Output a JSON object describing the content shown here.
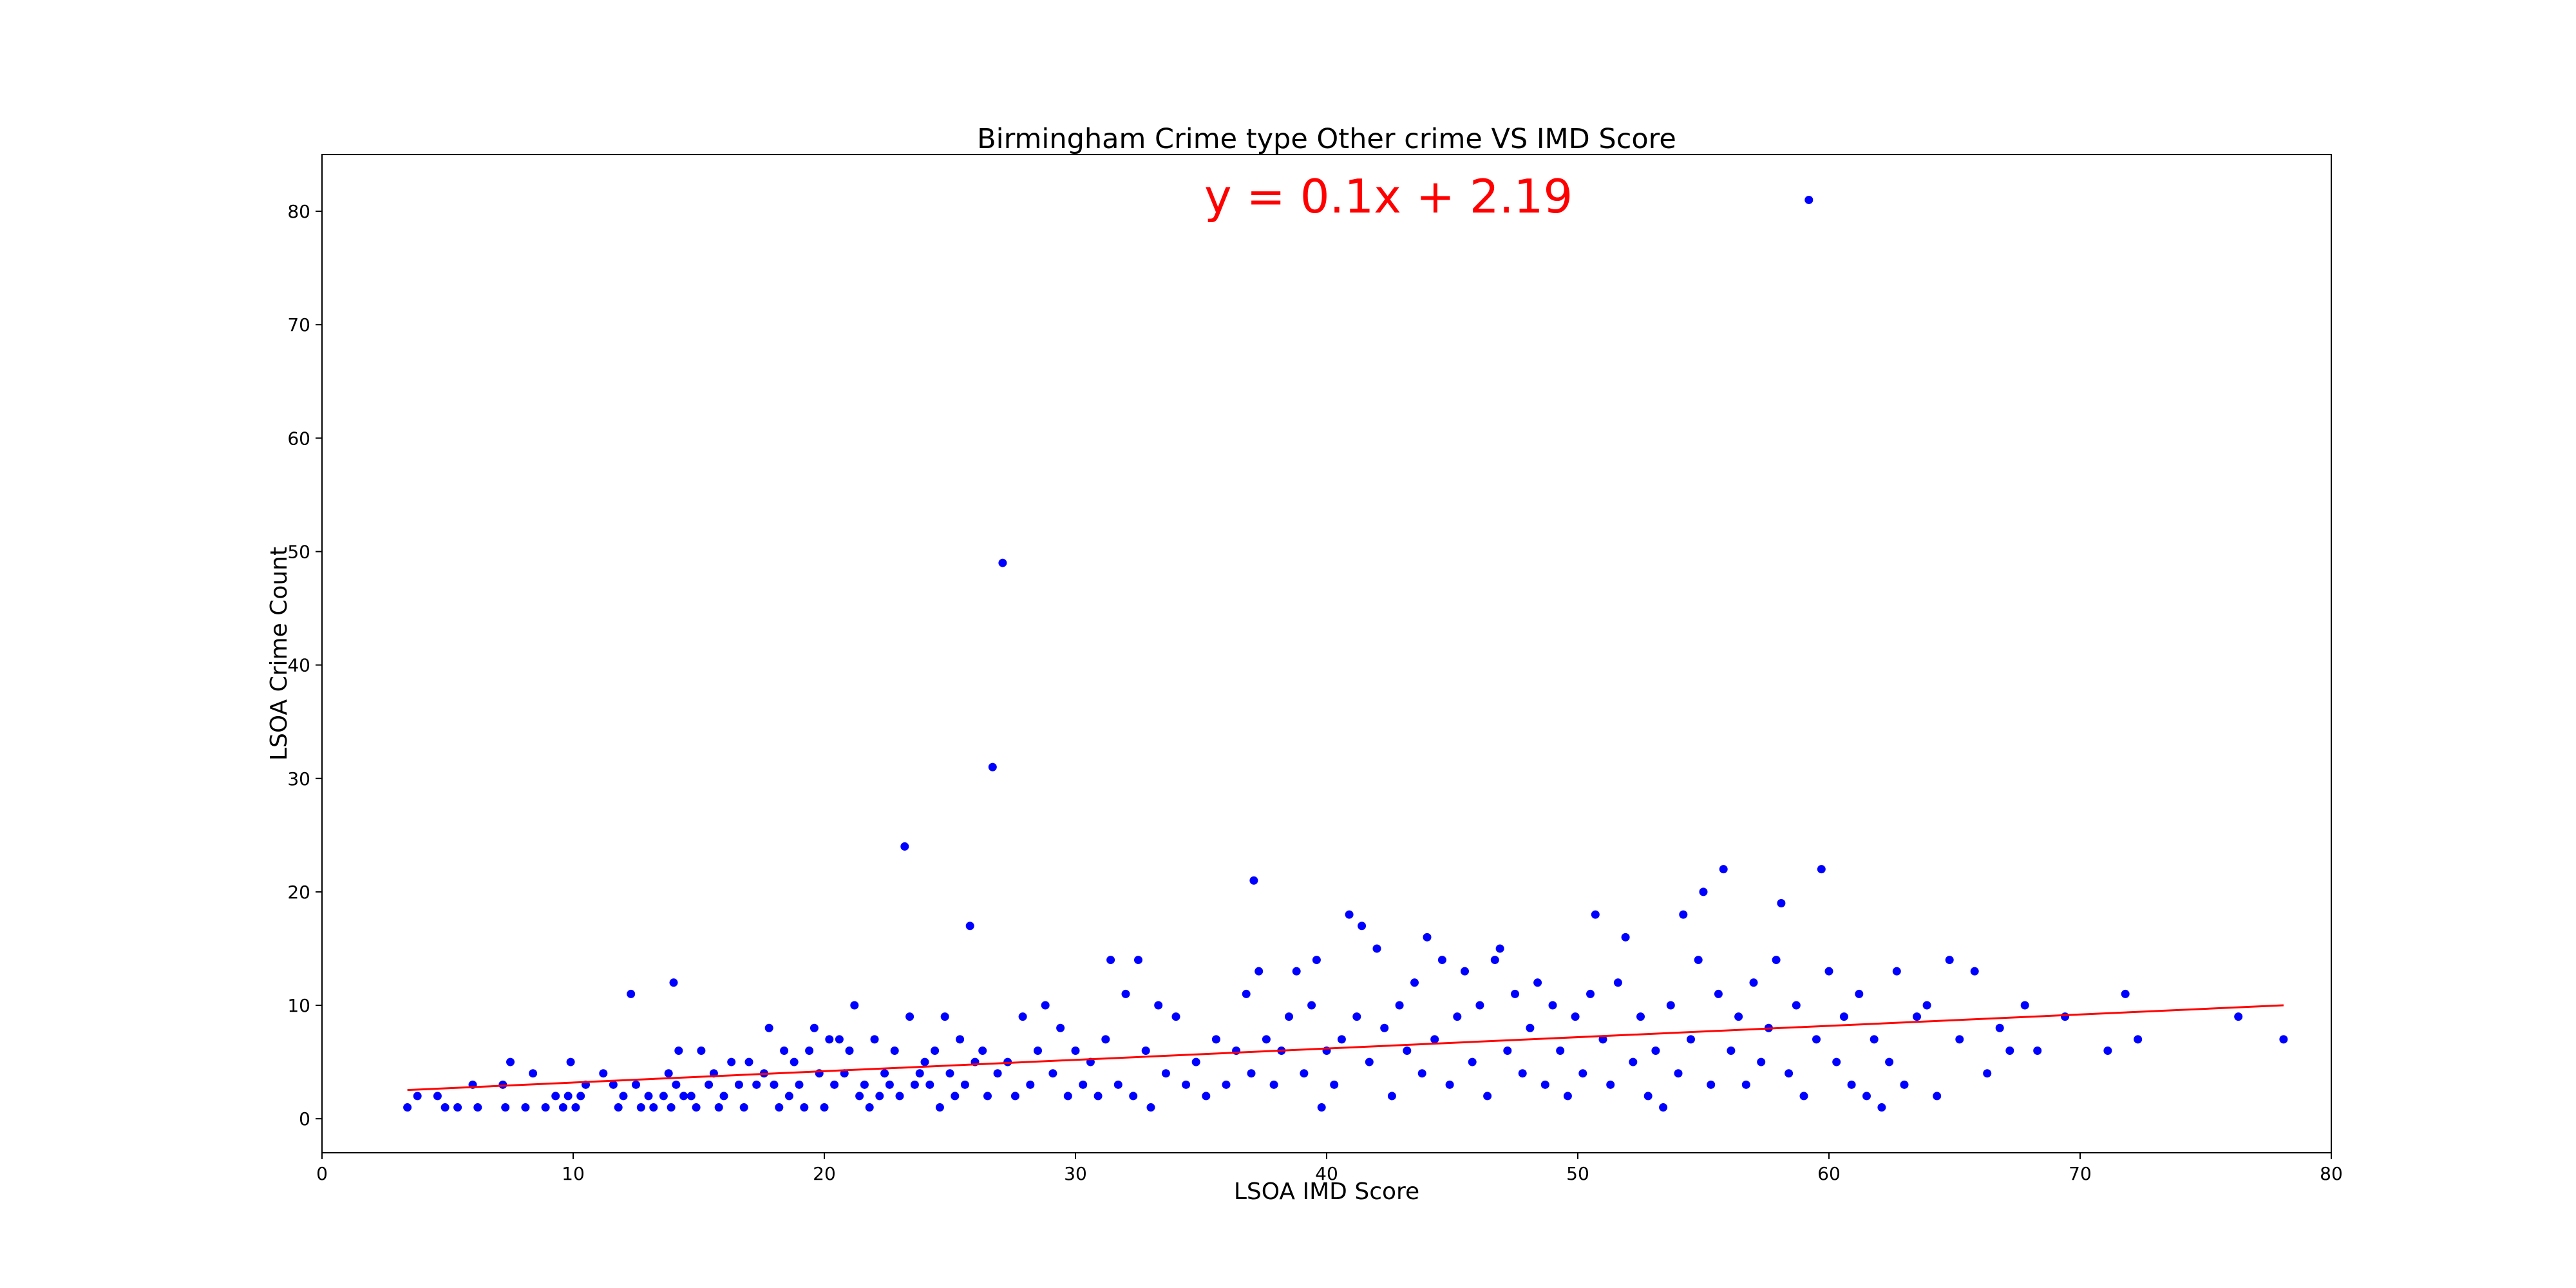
{
  "chart_data": {
    "type": "scatter",
    "title": "Birmingham Crime type Other crime VS IMD Score",
    "xlabel": "LSOA IMD Score",
    "ylabel": "LSOA Crime Count",
    "annotation": "y = 0.1x + 2.19",
    "xlim": [
      0,
      80
    ],
    "ylim": [
      -3,
      85
    ],
    "xticks": [
      0,
      10,
      20,
      30,
      40,
      50,
      60,
      70,
      80
    ],
    "yticks": [
      0,
      10,
      20,
      30,
      40,
      50,
      60,
      70,
      80
    ],
    "grid": false,
    "point_color": "#0000ff",
    "line_color": "#ff0000",
    "annotation_color": "#ff0000",
    "regression": {
      "slope": 0.1,
      "intercept": 2.19,
      "x_start": 3.4,
      "x_end": 78.1
    },
    "points": [
      [
        3.4,
        1
      ],
      [
        3.8,
        2
      ],
      [
        4.6,
        2
      ],
      [
        4.9,
        1
      ],
      [
        5.4,
        1
      ],
      [
        6.0,
        3
      ],
      [
        6.2,
        1
      ],
      [
        7.2,
        3
      ],
      [
        7.3,
        1
      ],
      [
        7.5,
        5
      ],
      [
        8.1,
        1
      ],
      [
        8.4,
        4
      ],
      [
        8.9,
        1
      ],
      [
        9.3,
        2
      ],
      [
        9.6,
        1
      ],
      [
        9.8,
        2
      ],
      [
        9.9,
        5
      ],
      [
        10.1,
        1
      ],
      [
        10.3,
        2
      ],
      [
        10.5,
        3
      ],
      [
        11.2,
        4
      ],
      [
        11.6,
        3
      ],
      [
        11.8,
        1
      ],
      [
        12.0,
        2
      ],
      [
        12.3,
        11
      ],
      [
        12.5,
        3
      ],
      [
        12.7,
        1
      ],
      [
        13.0,
        2
      ],
      [
        13.2,
        1
      ],
      [
        13.6,
        2
      ],
      [
        13.8,
        4
      ],
      [
        13.9,
        1
      ],
      [
        14.0,
        12
      ],
      [
        14.1,
        3
      ],
      [
        14.2,
        6
      ],
      [
        14.4,
        2
      ],
      [
        14.7,
        2
      ],
      [
        14.9,
        1
      ],
      [
        15.1,
        6
      ],
      [
        15.4,
        3
      ],
      [
        15.6,
        4
      ],
      [
        15.8,
        1
      ],
      [
        16.0,
        2
      ],
      [
        16.3,
        5
      ],
      [
        16.6,
        3
      ],
      [
        16.8,
        1
      ],
      [
        17.0,
        5
      ],
      [
        17.3,
        3
      ],
      [
        17.6,
        4
      ],
      [
        17.8,
        8
      ],
      [
        18.0,
        3
      ],
      [
        18.2,
        1
      ],
      [
        18.4,
        6
      ],
      [
        18.6,
        2
      ],
      [
        18.8,
        5
      ],
      [
        19.0,
        3
      ],
      [
        19.2,
        1
      ],
      [
        19.4,
        6
      ],
      [
        19.6,
        8
      ],
      [
        19.8,
        4
      ],
      [
        20.0,
        1
      ],
      [
        20.2,
        7
      ],
      [
        20.4,
        3
      ],
      [
        20.6,
        7
      ],
      [
        20.8,
        4
      ],
      [
        21.0,
        6
      ],
      [
        21.2,
        10
      ],
      [
        21.4,
        2
      ],
      [
        21.6,
        3
      ],
      [
        21.8,
        1
      ],
      [
        22.0,
        7
      ],
      [
        22.2,
        2
      ],
      [
        22.4,
        4
      ],
      [
        22.6,
        3
      ],
      [
        22.8,
        6
      ],
      [
        23.0,
        2
      ],
      [
        23.2,
        24
      ],
      [
        23.4,
        9
      ],
      [
        23.6,
        3
      ],
      [
        23.8,
        4
      ],
      [
        24.0,
        5
      ],
      [
        24.2,
        3
      ],
      [
        24.4,
        6
      ],
      [
        24.6,
        1
      ],
      [
        24.8,
        9
      ],
      [
        25.0,
        4
      ],
      [
        25.2,
        2
      ],
      [
        25.4,
        7
      ],
      [
        25.6,
        3
      ],
      [
        25.8,
        17
      ],
      [
        26.0,
        5
      ],
      [
        26.3,
        6
      ],
      [
        26.5,
        2
      ],
      [
        26.7,
        31
      ],
      [
        26.9,
        4
      ],
      [
        27.1,
        49
      ],
      [
        27.3,
        5
      ],
      [
        27.6,
        2
      ],
      [
        27.9,
        9
      ],
      [
        28.2,
        3
      ],
      [
        28.5,
        6
      ],
      [
        28.8,
        10
      ],
      [
        29.1,
        4
      ],
      [
        29.4,
        8
      ],
      [
        29.7,
        2
      ],
      [
        30.0,
        6
      ],
      [
        30.3,
        3
      ],
      [
        30.6,
        5
      ],
      [
        30.9,
        2
      ],
      [
        31.2,
        7
      ],
      [
        31.4,
        14
      ],
      [
        31.7,
        3
      ],
      [
        32.0,
        11
      ],
      [
        32.3,
        2
      ],
      [
        32.5,
        14
      ],
      [
        32.8,
        6
      ],
      [
        33.0,
        1
      ],
      [
        33.3,
        10
      ],
      [
        33.6,
        4
      ],
      [
        34.0,
        9
      ],
      [
        34.4,
        3
      ],
      [
        34.8,
        5
      ],
      [
        35.2,
        2
      ],
      [
        35.6,
        7
      ],
      [
        36.0,
        3
      ],
      [
        36.4,
        6
      ],
      [
        36.8,
        11
      ],
      [
        37.0,
        4
      ],
      [
        37.1,
        21
      ],
      [
        37.3,
        13
      ],
      [
        37.6,
        7
      ],
      [
        37.9,
        3
      ],
      [
        38.2,
        6
      ],
      [
        38.5,
        9
      ],
      [
        38.8,
        13
      ],
      [
        39.1,
        4
      ],
      [
        39.4,
        10
      ],
      [
        39.6,
        14
      ],
      [
        39.8,
        1
      ],
      [
        40.0,
        6
      ],
      [
        40.3,
        3
      ],
      [
        40.6,
        7
      ],
      [
        40.9,
        18
      ],
      [
        41.2,
        9
      ],
      [
        41.4,
        17
      ],
      [
        41.7,
        5
      ],
      [
        42.0,
        15
      ],
      [
        42.3,
        8
      ],
      [
        42.6,
        2
      ],
      [
        42.9,
        10
      ],
      [
        43.2,
        6
      ],
      [
        43.5,
        12
      ],
      [
        43.8,
        4
      ],
      [
        44.0,
        16
      ],
      [
        44.3,
        7
      ],
      [
        44.6,
        14
      ],
      [
        44.9,
        3
      ],
      [
        45.2,
        9
      ],
      [
        45.5,
        13
      ],
      [
        45.8,
        5
      ],
      [
        46.1,
        10
      ],
      [
        46.4,
        2
      ],
      [
        46.7,
        14
      ],
      [
        46.9,
        15
      ],
      [
        47.2,
        6
      ],
      [
        47.5,
        11
      ],
      [
        47.8,
        4
      ],
      [
        48.1,
        8
      ],
      [
        48.4,
        12
      ],
      [
        48.7,
        3
      ],
      [
        49.0,
        10
      ],
      [
        49.3,
        6
      ],
      [
        49.6,
        2
      ],
      [
        49.9,
        9
      ],
      [
        50.2,
        4
      ],
      [
        50.5,
        11
      ],
      [
        50.7,
        18
      ],
      [
        51.0,
        7
      ],
      [
        51.3,
        3
      ],
      [
        51.6,
        12
      ],
      [
        51.9,
        16
      ],
      [
        52.2,
        5
      ],
      [
        52.5,
        9
      ],
      [
        52.8,
        2
      ],
      [
        53.1,
        6
      ],
      [
        53.4,
        1
      ],
      [
        53.7,
        10
      ],
      [
        54.0,
        4
      ],
      [
        54.2,
        18
      ],
      [
        54.5,
        7
      ],
      [
        54.8,
        14
      ],
      [
        55.0,
        20
      ],
      [
        55.3,
        3
      ],
      [
        55.6,
        11
      ],
      [
        55.8,
        22
      ],
      [
        56.1,
        6
      ],
      [
        56.4,
        9
      ],
      [
        56.7,
        3
      ],
      [
        57.0,
        12
      ],
      [
        57.3,
        5
      ],
      [
        57.6,
        8
      ],
      [
        57.9,
        14
      ],
      [
        58.1,
        19
      ],
      [
        58.4,
        4
      ],
      [
        58.7,
        10
      ],
      [
        59.0,
        2
      ],
      [
        59.2,
        81
      ],
      [
        59.5,
        7
      ],
      [
        59.7,
        22
      ],
      [
        60.0,
        13
      ],
      [
        60.3,
        5
      ],
      [
        60.6,
        9
      ],
      [
        60.9,
        3
      ],
      [
        61.2,
        11
      ],
      [
        61.5,
        2
      ],
      [
        61.8,
        7
      ],
      [
        62.1,
        1
      ],
      [
        62.4,
        5
      ],
      [
        62.7,
        13
      ],
      [
        63.0,
        3
      ],
      [
        63.5,
        9
      ],
      [
        63.9,
        10
      ],
      [
        64.3,
        2
      ],
      [
        64.8,
        14
      ],
      [
        65.2,
        7
      ],
      [
        65.8,
        13
      ],
      [
        66.3,
        4
      ],
      [
        66.8,
        8
      ],
      [
        67.2,
        6
      ],
      [
        67.8,
        10
      ],
      [
        68.3,
        6
      ],
      [
        69.4,
        9
      ],
      [
        71.1,
        6
      ],
      [
        71.8,
        11
      ],
      [
        72.3,
        7
      ],
      [
        76.3,
        9
      ],
      [
        78.1,
        7
      ]
    ]
  }
}
